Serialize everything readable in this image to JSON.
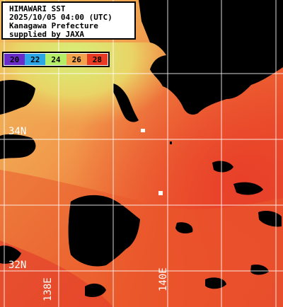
{
  "header": {
    "lines": [
      "HIMAWARI SST",
      "2025/10/05 04:00 (UTC)",
      "Kanagawa Prefecture",
      "supplied by JAXA"
    ]
  },
  "colorbar": {
    "labels": [
      "20",
      "22",
      "24",
      "26",
      "28"
    ],
    "colors": [
      "#6a2cc8",
      "#2aa6e6",
      "#b4ee66",
      "#f3a24e",
      "#e93a24"
    ]
  },
  "grid": {
    "lat_labels": [
      "34N",
      "32N"
    ],
    "lon_labels": [
      "138E",
      "140E"
    ],
    "line_color": "#ffffff"
  },
  "palette": {
    "land": "#000000",
    "cool_coast": "#d8ee7a",
    "warm_sea": "#ef5a2a",
    "mid_sea": "#f3a85a"
  }
}
